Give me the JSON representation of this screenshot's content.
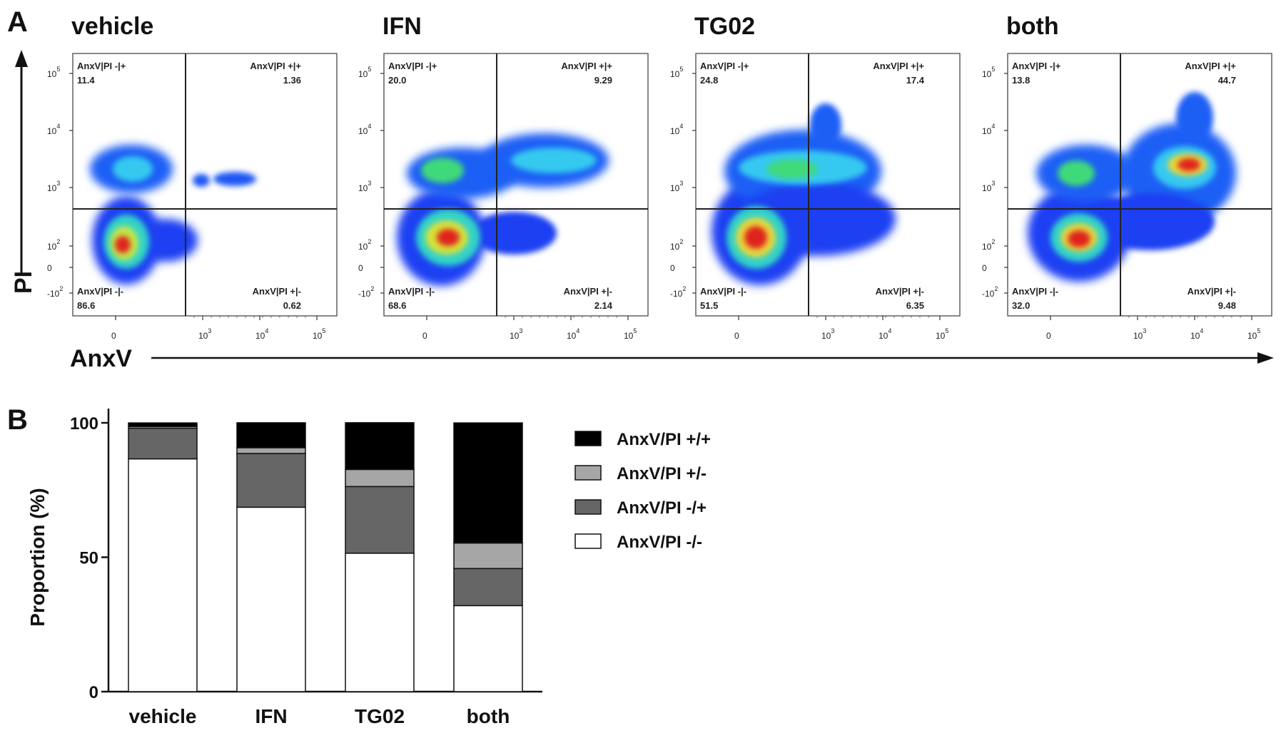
{
  "panel_a": {
    "letter": "A",
    "x_axis_label": "AnxV",
    "y_axis_label": "PI",
    "x_ticks": [
      {
        "base": "0",
        "exp": ""
      },
      {
        "base": "10",
        "exp": "3"
      },
      {
        "base": "10",
        "exp": "4"
      },
      {
        "base": "10",
        "exp": "5"
      }
    ],
    "y_ticks": [
      {
        "base": "10",
        "exp": "5"
      },
      {
        "base": "10",
        "exp": "4"
      },
      {
        "base": "10",
        "exp": "3"
      },
      {
        "base": "10",
        "exp": "2"
      },
      {
        "base": "0",
        "exp": ""
      },
      {
        "base": "-10",
        "exp": "2"
      }
    ],
    "plots": [
      {
        "condition": "vehicle",
        "gates": {
          "ul": {
            "label": "AnxV|PI -|+",
            "value": "11.4"
          },
          "ur": {
            "label": "AnxV|PI +|+",
            "value": "1.36"
          },
          "ll": {
            "label": "AnxV|PI -|-",
            "value": "86.6"
          },
          "lr": {
            "label": "AnxV|PI +|-",
            "value": "0.62"
          }
        }
      },
      {
        "condition": "IFN",
        "gates": {
          "ul": {
            "label": "AnxV|PI -|+",
            "value": "20.0"
          },
          "ur": {
            "label": "AnxV|PI +|+",
            "value": "9.29"
          },
          "ll": {
            "label": "AnxV|PI -|-",
            "value": "68.6"
          },
          "lr": {
            "label": "AnxV|PI +|-",
            "value": "2.14"
          }
        }
      },
      {
        "condition": "TG02",
        "gates": {
          "ul": {
            "label": "AnxV|PI -|+",
            "value": "24.8"
          },
          "ur": {
            "label": "AnxV|PI +|+",
            "value": "17.4"
          },
          "ll": {
            "label": "AnxV|PI -|-",
            "value": "51.5"
          },
          "lr": {
            "label": "AnxV|PI +|-",
            "value": "6.35"
          }
        }
      },
      {
        "condition": "both",
        "gates": {
          "ul": {
            "label": "AnxV|PI -|+",
            "value": "13.8"
          },
          "ur": {
            "label": "AnxV|PI +|+",
            "value": "44.7"
          },
          "ll": {
            "label": "AnxV|PI -|-",
            "value": "32.0"
          },
          "lr": {
            "label": "AnxV|PI +|-",
            "value": "9.48"
          }
        }
      }
    ]
  },
  "panel_b": {
    "letter": "B"
  },
  "colors": {
    "pp": "#000000",
    "pm": "#a6a6a6",
    "mp": "#666666",
    "mm": "#ffffff",
    "density_low": "#1a2cf0",
    "density_high": "#e0201a"
  },
  "chart_data": [
    {
      "type": "scatter",
      "subtype": "flow-cytometry-density-quadrants",
      "panels": [
        "vehicle",
        "IFN",
        "TG02",
        "both"
      ],
      "xlabel": "AnxV",
      "ylabel": "PI",
      "x_scale": "biexponential",
      "y_scale": "biexponential",
      "quadrant_percentages": {
        "vehicle": {
          "AnxV|PI -|+": 11.4,
          "AnxV|PI +|+": 1.36,
          "AnxV|PI -|-": 86.6,
          "AnxV|PI +|-": 0.62
        },
        "IFN": {
          "AnxV|PI -|+": 20.0,
          "AnxV|PI +|+": 9.29,
          "AnxV|PI -|-": 68.6,
          "AnxV|PI +|-": 2.14
        },
        "TG02": {
          "AnxV|PI -|+": 24.8,
          "AnxV|PI +|+": 17.4,
          "AnxV|PI -|-": 51.5,
          "AnxV|PI +|-": 6.35
        },
        "both": {
          "AnxV|PI -|+": 13.8,
          "AnxV|PI +|+": 44.7,
          "AnxV|PI -|-": 32.0,
          "AnxV|PI +|-": 9.48
        }
      }
    },
    {
      "type": "bar",
      "stacked": true,
      "categories": [
        "vehicle",
        "IFN",
        "TG02",
        "both"
      ],
      "series": [
        {
          "name": "AnxV/PI -/-",
          "color": "#ffffff",
          "values": [
            86.6,
            68.6,
            51.5,
            32.0
          ]
        },
        {
          "name": "AnxV/PI -/+",
          "color": "#666666",
          "values": [
            11.4,
            20.0,
            24.8,
            13.8
          ]
        },
        {
          "name": "AnxV/PI +/-",
          "color": "#a6a6a6",
          "values": [
            0.62,
            2.14,
            6.35,
            9.48
          ]
        },
        {
          "name": "AnxV/PI +/+",
          "color": "#000000",
          "values": [
            1.36,
            9.29,
            17.4,
            44.7
          ]
        }
      ],
      "legend_order": [
        "AnxV/PI +/+",
        "AnxV/PI +/-",
        "AnxV/PI -/+",
        "AnxV/PI -/-"
      ],
      "ylabel": "Proportion (%)",
      "xlabel": "",
      "ylim": [
        0,
        100
      ],
      "yticks": [
        "0",
        "50",
        "100"
      ],
      "legend_position": "right"
    }
  ]
}
